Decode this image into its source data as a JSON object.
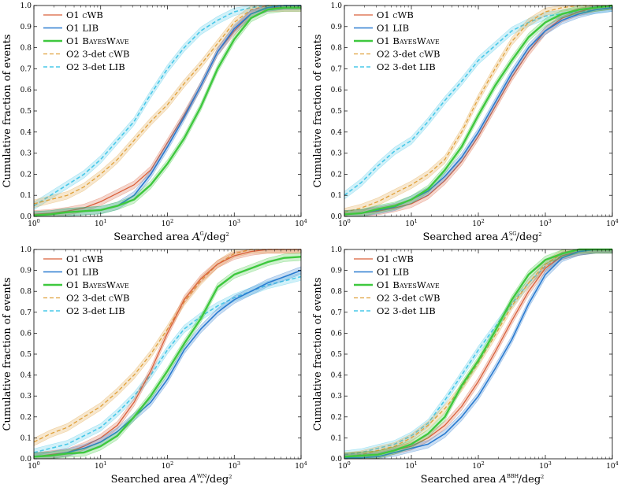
{
  "chart_data": {
    "type": "line",
    "x_log10_grid": [
      0,
      0.25,
      0.5,
      0.75,
      1,
      1.25,
      1.5,
      1.75,
      2,
      2.25,
      2.5,
      2.75,
      3,
      3.25,
      3.5,
      3.75,
      4
    ],
    "xlim": [
      1,
      10000
    ],
    "ylim": [
      0,
      1
    ],
    "xscale": "log",
    "ylabel": "Cumulative fraction of events",
    "y_ticks": [
      "0.0",
      "0.1",
      "0.2",
      "0.3",
      "0.4",
      "0.5",
      "0.6",
      "0.7",
      "0.8",
      "0.9",
      "1.0"
    ],
    "x_ticks": [
      {
        "base": "10",
        "exp": "0"
      },
      {
        "base": "10",
        "exp": "1"
      },
      {
        "base": "10",
        "exp": "2"
      },
      {
        "base": "10",
        "exp": "3"
      },
      {
        "base": "10",
        "exp": "4"
      }
    ],
    "legend_placement": "top-left",
    "series_styles": [
      {
        "prefix": "O1 ",
        "sc": "cWB",
        "color": "#d9603b",
        "dash": false,
        "width": 1.3
      },
      {
        "prefix": "O1 ",
        "sc": "LIB",
        "color": "#2a7bd0",
        "dash": false,
        "width": 1.6
      },
      {
        "prefix": "O1 ",
        "sc": "BayesWave",
        "color": "#3ec83e",
        "dash": false,
        "width": 2.4
      },
      {
        "prefix": "O2 3-det ",
        "sc": "cWB",
        "color": "#e0a13a",
        "dash": true,
        "width": 1.3
      },
      {
        "prefix": "O2 3-det ",
        "sc": "LIB",
        "color": "#48c8e8",
        "dash": true,
        "width": 1.6
      }
    ],
    "panels": [
      {
        "xlabel": {
          "pre": "Searched area ",
          "sym": "A",
          "sub": "*",
          "sup": "G",
          "post": "/deg",
          "post_sup": "2"
        },
        "series": [
          {
            "name": "O1 cWB",
            "values": [
              0.01,
              0.015,
              0.025,
              0.04,
              0.07,
              0.11,
              0.15,
              0.22,
              0.35,
              0.48,
              0.62,
              0.78,
              0.88,
              0.96,
              0.99,
              0.99,
              0.99
            ]
          },
          {
            "name": "O1 LIB",
            "values": [
              0.005,
              0.01,
              0.02,
              0.025,
              0.03,
              0.05,
              0.1,
              0.2,
              0.33,
              0.47,
              0.62,
              0.78,
              0.89,
              0.96,
              0.99,
              1,
              1
            ]
          },
          {
            "name": "O1 BayesWave",
            "values": [
              0.005,
              0.01,
              0.02,
              0.025,
              0.03,
              0.05,
              0.08,
              0.15,
              0.25,
              0.37,
              0.52,
              0.7,
              0.84,
              0.94,
              0.98,
              0.99,
              0.99
            ]
          },
          {
            "name": "O2 3-det cWB",
            "values": [
              0.06,
              0.08,
              0.1,
              0.14,
              0.2,
              0.27,
              0.36,
              0.45,
              0.53,
              0.63,
              0.72,
              0.82,
              0.92,
              0.98,
              1,
              1,
              1
            ]
          },
          {
            "name": "O2 3-det LIB",
            "values": [
              0.05,
              0.1,
              0.15,
              0.2,
              0.27,
              0.36,
              0.45,
              0.58,
              0.7,
              0.8,
              0.88,
              0.93,
              0.97,
              0.99,
              1,
              1,
              1
            ]
          }
        ]
      },
      {
        "xlabel": {
          "pre": "Searched area ",
          "sym": "A",
          "sub": "*",
          "sup": "SG",
          "post": "/deg",
          "post_sup": "2"
        },
        "series": [
          {
            "name": "O1 cWB",
            "values": [
              0.01,
              0.015,
              0.025,
              0.04,
              0.06,
              0.1,
              0.17,
              0.26,
              0.38,
              0.52,
              0.66,
              0.78,
              0.88,
              0.94,
              0.97,
              0.99,
              1
            ]
          },
          {
            "name": "O1 LIB",
            "values": [
              0.01,
              0.015,
              0.03,
              0.045,
              0.08,
              0.12,
              0.19,
              0.28,
              0.4,
              0.54,
              0.68,
              0.8,
              0.88,
              0.93,
              0.96,
              0.98,
              0.99
            ]
          },
          {
            "name": "O1 BayesWave",
            "values": [
              0.01,
              0.015,
              0.035,
              0.05,
              0.08,
              0.13,
              0.22,
              0.33,
              0.48,
              0.62,
              0.74,
              0.85,
              0.92,
              0.96,
              0.98,
              0.99,
              1
            ]
          },
          {
            "name": "O2 3-det cWB",
            "values": [
              0.02,
              0.04,
              0.07,
              0.11,
              0.15,
              0.2,
              0.27,
              0.4,
              0.56,
              0.7,
              0.83,
              0.92,
              0.97,
              0.99,
              1,
              1,
              1
            ]
          },
          {
            "name": "O2 3-det LIB",
            "values": [
              0.1,
              0.16,
              0.24,
              0.31,
              0.36,
              0.45,
              0.55,
              0.64,
              0.74,
              0.81,
              0.88,
              0.92,
              0.95,
              0.96,
              0.97,
              0.98,
              0.99
            ]
          }
        ]
      },
      {
        "xlabel": {
          "pre": "Searched area ",
          "sym": "A",
          "sub": "*",
          "sup": "WN",
          "post": "/deg",
          "post_sup": "2"
        },
        "series": [
          {
            "name": "O1 cWB",
            "values": [
              0.01,
              0.02,
              0.03,
              0.06,
              0.1,
              0.16,
              0.27,
              0.42,
              0.6,
              0.76,
              0.86,
              0.93,
              0.97,
              0.99,
              1,
              1,
              1
            ]
          },
          {
            "name": "O1 LIB",
            "values": [
              0.01,
              0.015,
              0.03,
              0.05,
              0.08,
              0.13,
              0.2,
              0.27,
              0.38,
              0.52,
              0.62,
              0.7,
              0.76,
              0.8,
              0.84,
              0.87,
              0.9
            ]
          },
          {
            "name": "O1 BayesWave",
            "values": [
              0.01,
              0.015,
              0.025,
              0.03,
              0.06,
              0.11,
              0.2,
              0.3,
              0.42,
              0.55,
              0.67,
              0.82,
              0.88,
              0.91,
              0.94,
              0.96,
              0.965
            ]
          },
          {
            "name": "O2 3-det cWB",
            "values": [
              0.08,
              0.12,
              0.15,
              0.2,
              0.25,
              0.32,
              0.4,
              0.5,
              0.62,
              0.75,
              0.85,
              0.93,
              0.98,
              1,
              1,
              1,
              1
            ]
          },
          {
            "name": "O2 3-det LIB",
            "values": [
              0.03,
              0.05,
              0.07,
              0.11,
              0.15,
              0.22,
              0.3,
              0.4,
              0.52,
              0.62,
              0.68,
              0.73,
              0.77,
              0.8,
              0.83,
              0.85,
              0.87
            ]
          }
        ]
      },
      {
        "xlabel": {
          "pre": "Searched area ",
          "sym": "A",
          "sub": "*",
          "sup": "BBH",
          "post": "/deg",
          "post_sup": "2"
        },
        "series": [
          {
            "name": "O1 cWB",
            "values": [
              0.01,
              0.015,
              0.02,
              0.04,
              0.06,
              0.1,
              0.16,
              0.25,
              0.37,
              0.51,
              0.66,
              0.8,
              0.91,
              0.97,
              0.99,
              1,
              1
            ]
          },
          {
            "name": "O1 LIB",
            "values": [
              0.005,
              0.005,
              0.01,
              0.03,
              0.05,
              0.07,
              0.12,
              0.2,
              0.3,
              0.43,
              0.57,
              0.74,
              0.88,
              0.96,
              0.99,
              1,
              1
            ]
          },
          {
            "name": "O1 BayesWave",
            "values": [
              0.01,
              0.015,
              0.02,
              0.04,
              0.07,
              0.12,
              0.2,
              0.35,
              0.47,
              0.61,
              0.76,
              0.88,
              0.95,
              0.98,
              1,
              1,
              1
            ]
          },
          {
            "name": "O2 3-det cWB",
            "values": [
              0.01,
              0.02,
              0.04,
              0.06,
              0.1,
              0.16,
              0.24,
              0.34,
              0.46,
              0.59,
              0.73,
              0.84,
              0.93,
              0.98,
              1,
              1,
              1
            ]
          },
          {
            "name": "O2 3-det LIB",
            "values": [
              0.02,
              0.03,
              0.05,
              0.07,
              0.11,
              0.17,
              0.28,
              0.4,
              0.52,
              0.63,
              0.74,
              0.84,
              0.92,
              0.97,
              0.99,
              1,
              1
            ]
          }
        ]
      }
    ]
  }
}
